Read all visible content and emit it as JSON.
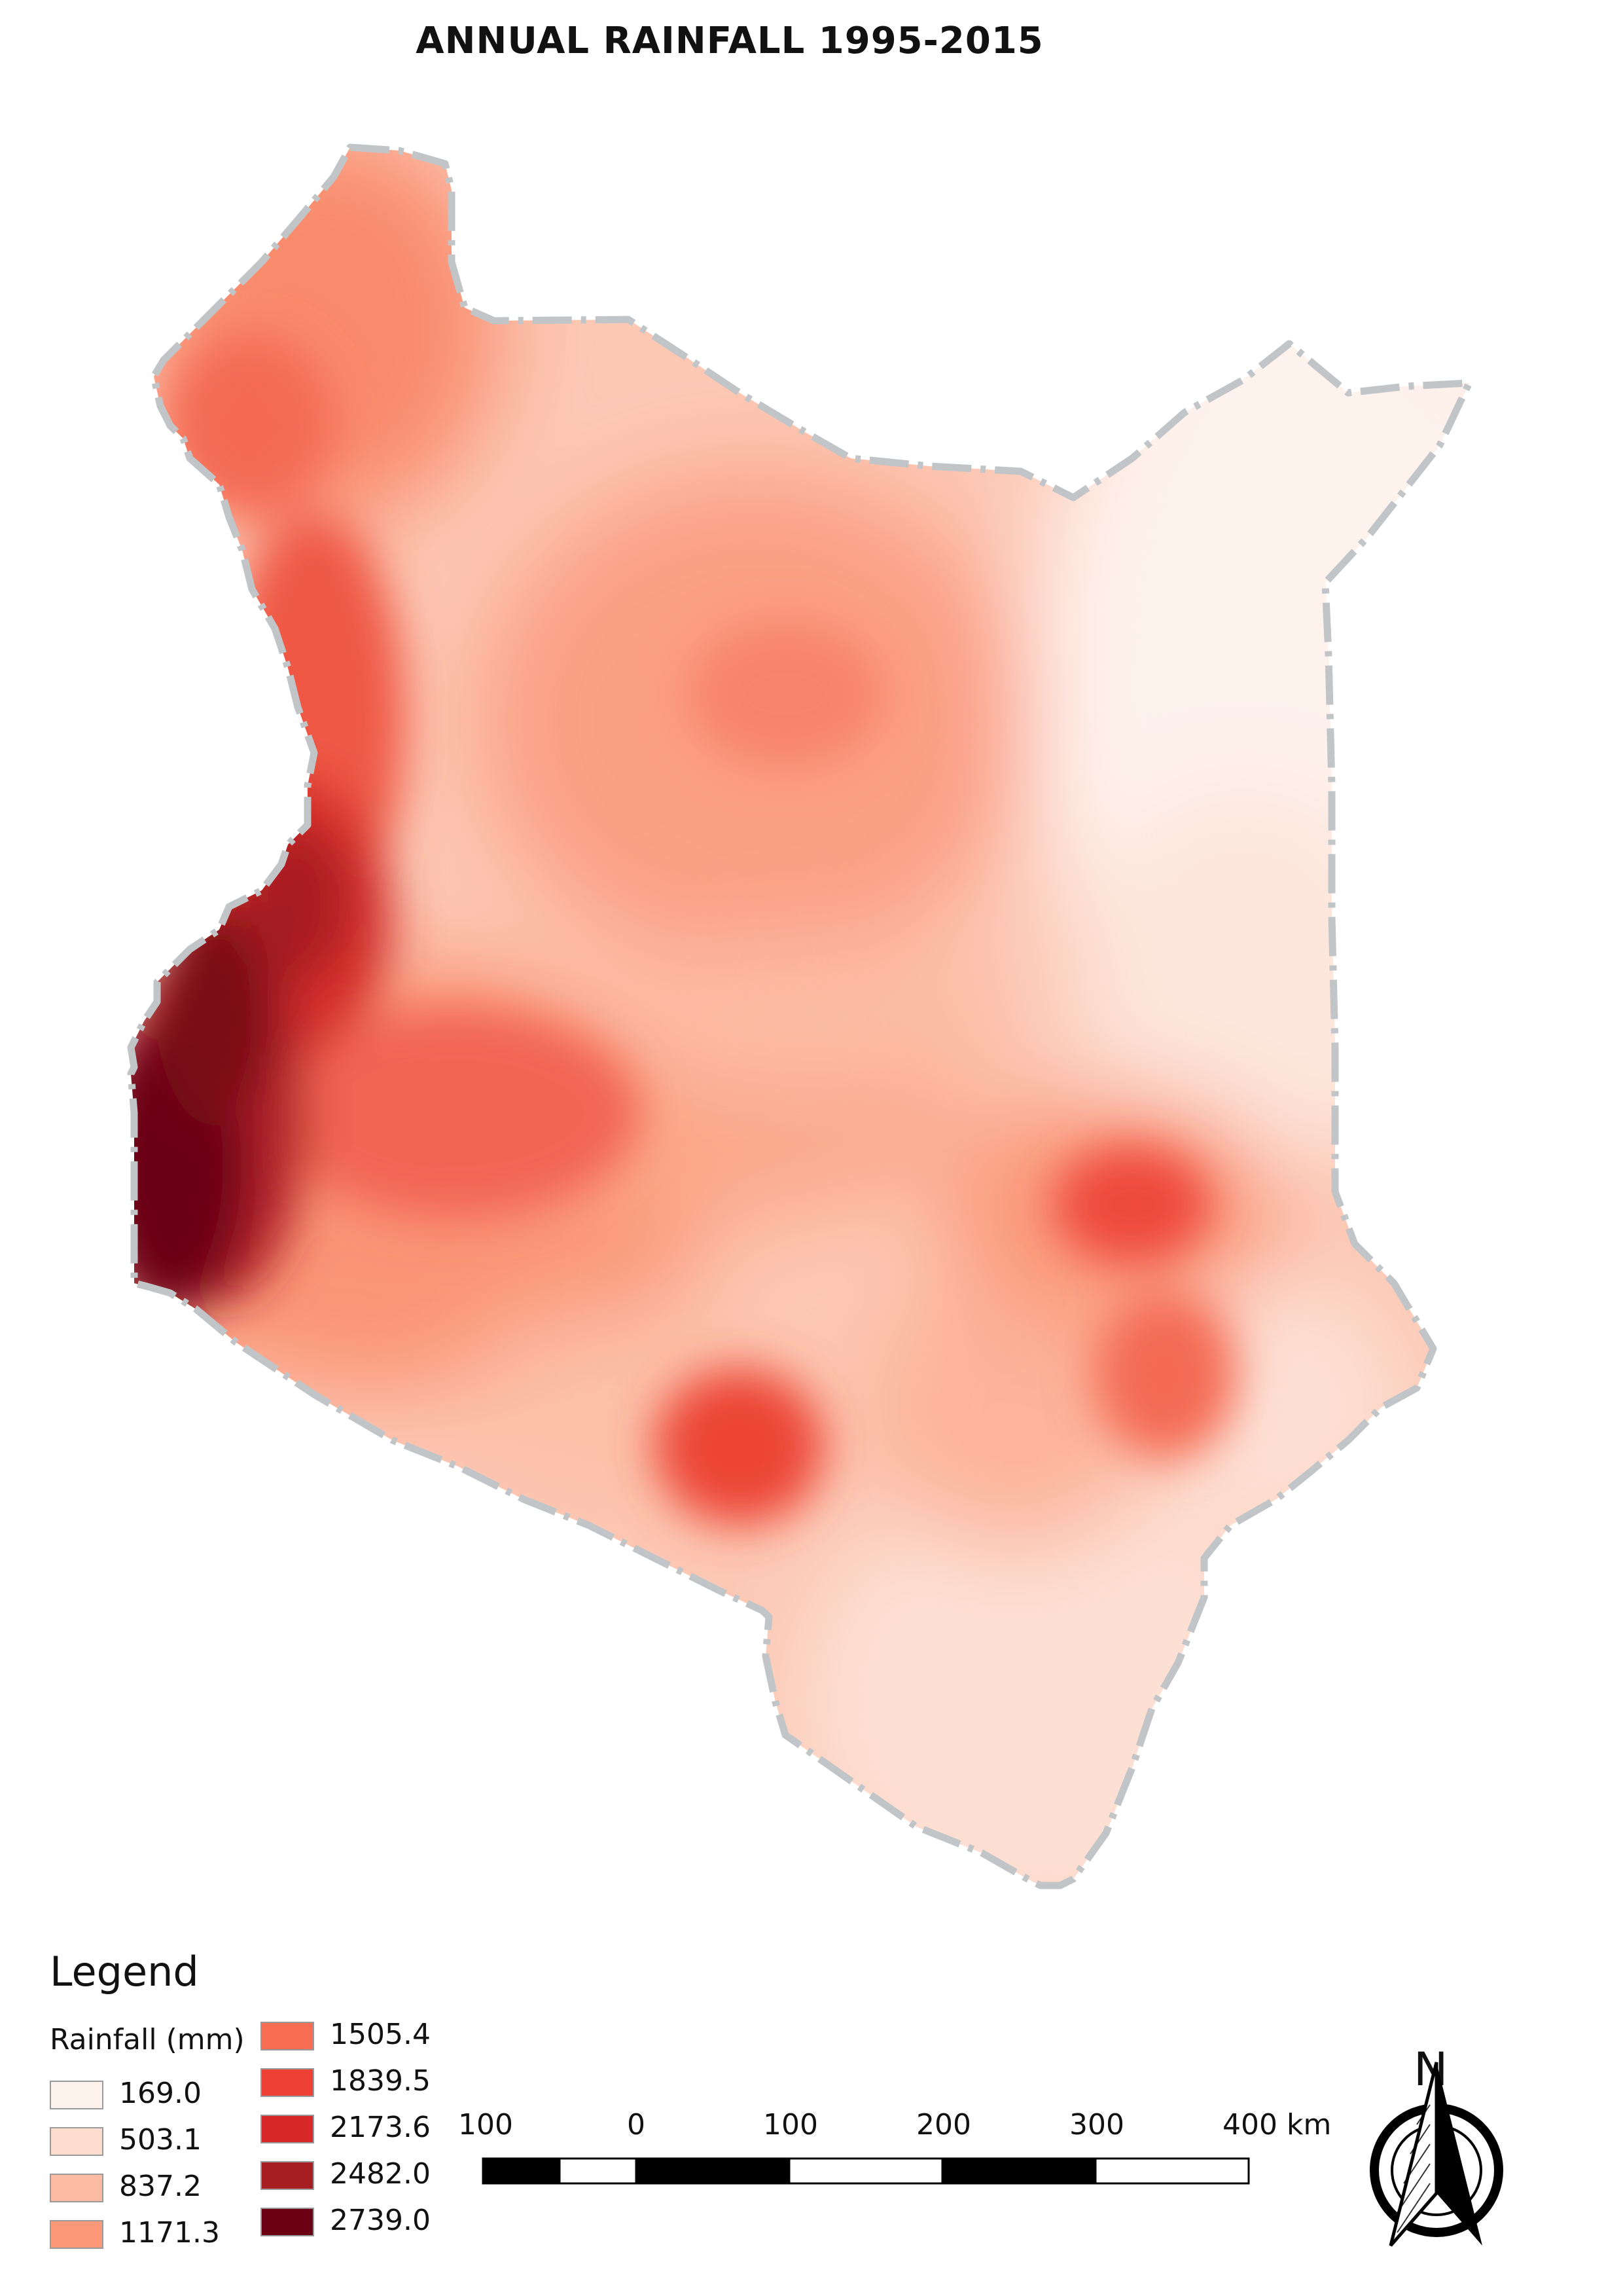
{
  "title": "ANNUAL RAINFALL 1995-2015",
  "legend": {
    "title": "Legend",
    "subtitle": "Rainfall (mm)",
    "classes": [
      {
        "label": "169.0",
        "color": "#fef2ed"
      },
      {
        "label": "503.1",
        "color": "#fdddd0"
      },
      {
        "label": "837.2",
        "color": "#fcbba2"
      },
      {
        "label": "1171.3",
        "color": "#fb9878"
      },
      {
        "label": "1505.4",
        "color": "#f66d53"
      },
      {
        "label": "1839.5",
        "color": "#ee4035"
      },
      {
        "label": "2173.6",
        "color": "#d9282a"
      },
      {
        "label": "2482.0",
        "color": "#a71e22"
      },
      {
        "label": "2739.0",
        "color": "#6b0014"
      }
    ]
  },
  "scale_bar": {
    "labels": [
      "100",
      "0",
      "100",
      "200",
      "300",
      "400 km"
    ]
  },
  "north_arrow": {
    "label": "N"
  },
  "colors": {
    "border": "#c2c5c8",
    "ramp_low": "#fef2ed",
    "ramp_high": "#6b0014"
  }
}
